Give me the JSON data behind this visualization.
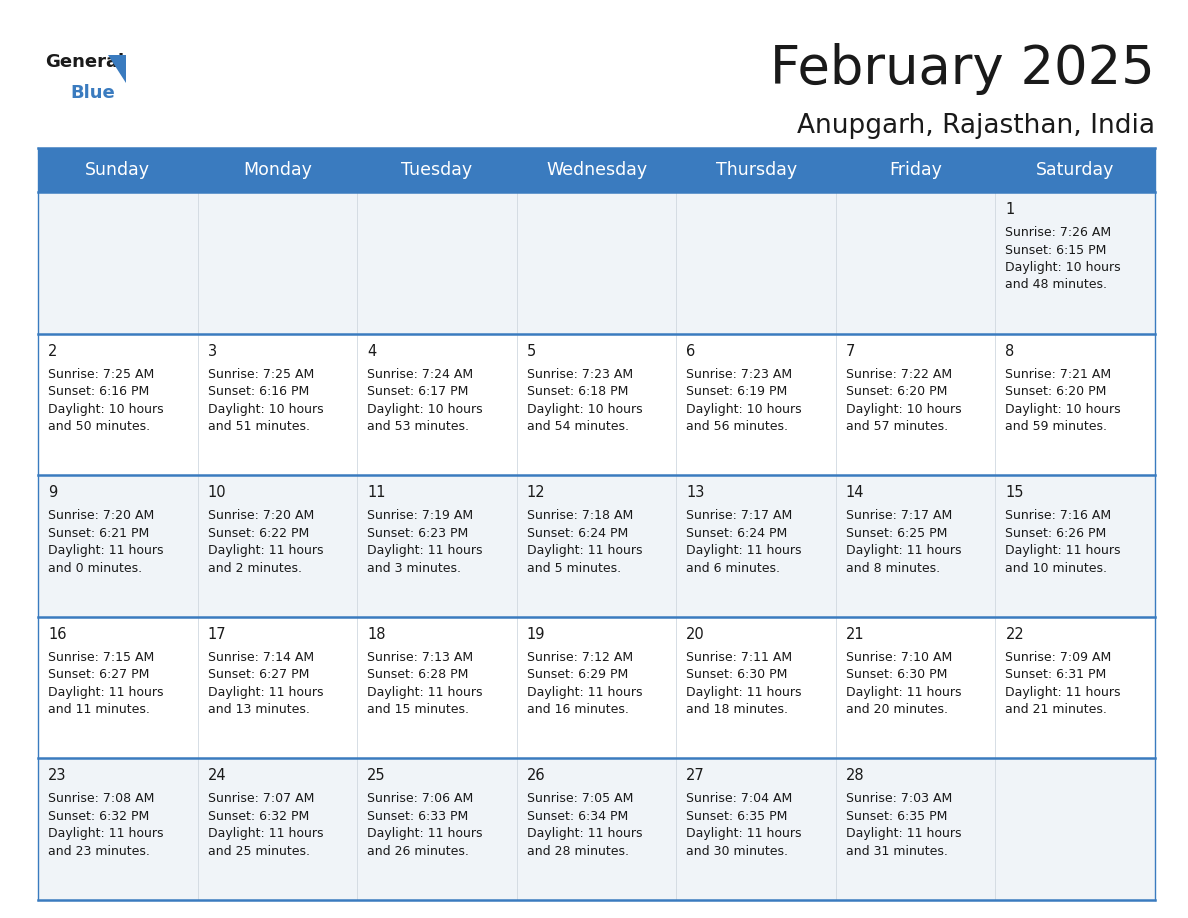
{
  "title": "February 2025",
  "subtitle": "Anupgarh, Rajasthan, India",
  "header_color": "#3a7bbf",
  "header_text_color": "#ffffff",
  "cell_bg": "#f0f4f8",
  "border_color": "#3a7bbf",
  "day_headers": [
    "Sunday",
    "Monday",
    "Tuesday",
    "Wednesday",
    "Thursday",
    "Friday",
    "Saturday"
  ],
  "title_fontsize": 38,
  "subtitle_fontsize": 19,
  "header_fontsize": 12.5,
  "day_num_fontsize": 10.5,
  "cell_text_fontsize": 9,
  "logo_general_fontsize": 13,
  "logo_blue_fontsize": 13,
  "days": [
    {
      "day": 1,
      "col": 6,
      "row": 0,
      "sunrise": "7:26 AM",
      "sunset": "6:15 PM",
      "daylight_h": "10 hours",
      "daylight_m": "48 minutes."
    },
    {
      "day": 2,
      "col": 0,
      "row": 1,
      "sunrise": "7:25 AM",
      "sunset": "6:16 PM",
      "daylight_h": "10 hours",
      "daylight_m": "50 minutes."
    },
    {
      "day": 3,
      "col": 1,
      "row": 1,
      "sunrise": "7:25 AM",
      "sunset": "6:16 PM",
      "daylight_h": "10 hours",
      "daylight_m": "51 minutes."
    },
    {
      "day": 4,
      "col": 2,
      "row": 1,
      "sunrise": "7:24 AM",
      "sunset": "6:17 PM",
      "daylight_h": "10 hours",
      "daylight_m": "53 minutes."
    },
    {
      "day": 5,
      "col": 3,
      "row": 1,
      "sunrise": "7:23 AM",
      "sunset": "6:18 PM",
      "daylight_h": "10 hours",
      "daylight_m": "54 minutes."
    },
    {
      "day": 6,
      "col": 4,
      "row": 1,
      "sunrise": "7:23 AM",
      "sunset": "6:19 PM",
      "daylight_h": "10 hours",
      "daylight_m": "56 minutes."
    },
    {
      "day": 7,
      "col": 5,
      "row": 1,
      "sunrise": "7:22 AM",
      "sunset": "6:20 PM",
      "daylight_h": "10 hours",
      "daylight_m": "57 minutes."
    },
    {
      "day": 8,
      "col": 6,
      "row": 1,
      "sunrise": "7:21 AM",
      "sunset": "6:20 PM",
      "daylight_h": "10 hours",
      "daylight_m": "59 minutes."
    },
    {
      "day": 9,
      "col": 0,
      "row": 2,
      "sunrise": "7:20 AM",
      "sunset": "6:21 PM",
      "daylight_h": "11 hours",
      "daylight_m": "0 minutes."
    },
    {
      "day": 10,
      "col": 1,
      "row": 2,
      "sunrise": "7:20 AM",
      "sunset": "6:22 PM",
      "daylight_h": "11 hours",
      "daylight_m": "2 minutes."
    },
    {
      "day": 11,
      "col": 2,
      "row": 2,
      "sunrise": "7:19 AM",
      "sunset": "6:23 PM",
      "daylight_h": "11 hours",
      "daylight_m": "3 minutes."
    },
    {
      "day": 12,
      "col": 3,
      "row": 2,
      "sunrise": "7:18 AM",
      "sunset": "6:24 PM",
      "daylight_h": "11 hours",
      "daylight_m": "5 minutes."
    },
    {
      "day": 13,
      "col": 4,
      "row": 2,
      "sunrise": "7:17 AM",
      "sunset": "6:24 PM",
      "daylight_h": "11 hours",
      "daylight_m": "6 minutes."
    },
    {
      "day": 14,
      "col": 5,
      "row": 2,
      "sunrise": "7:17 AM",
      "sunset": "6:25 PM",
      "daylight_h": "11 hours",
      "daylight_m": "8 minutes."
    },
    {
      "day": 15,
      "col": 6,
      "row": 2,
      "sunrise": "7:16 AM",
      "sunset": "6:26 PM",
      "daylight_h": "11 hours",
      "daylight_m": "10 minutes."
    },
    {
      "day": 16,
      "col": 0,
      "row": 3,
      "sunrise": "7:15 AM",
      "sunset": "6:27 PM",
      "daylight_h": "11 hours",
      "daylight_m": "11 minutes."
    },
    {
      "day": 17,
      "col": 1,
      "row": 3,
      "sunrise": "7:14 AM",
      "sunset": "6:27 PM",
      "daylight_h": "11 hours",
      "daylight_m": "13 minutes."
    },
    {
      "day": 18,
      "col": 2,
      "row": 3,
      "sunrise": "7:13 AM",
      "sunset": "6:28 PM",
      "daylight_h": "11 hours",
      "daylight_m": "15 minutes."
    },
    {
      "day": 19,
      "col": 3,
      "row": 3,
      "sunrise": "7:12 AM",
      "sunset": "6:29 PM",
      "daylight_h": "11 hours",
      "daylight_m": "16 minutes."
    },
    {
      "day": 20,
      "col": 4,
      "row": 3,
      "sunrise": "7:11 AM",
      "sunset": "6:30 PM",
      "daylight_h": "11 hours",
      "daylight_m": "18 minutes."
    },
    {
      "day": 21,
      "col": 5,
      "row": 3,
      "sunrise": "7:10 AM",
      "sunset": "6:30 PM",
      "daylight_h": "11 hours",
      "daylight_m": "20 minutes."
    },
    {
      "day": 22,
      "col": 6,
      "row": 3,
      "sunrise": "7:09 AM",
      "sunset": "6:31 PM",
      "daylight_h": "11 hours",
      "daylight_m": "21 minutes."
    },
    {
      "day": 23,
      "col": 0,
      "row": 4,
      "sunrise": "7:08 AM",
      "sunset": "6:32 PM",
      "daylight_h": "11 hours",
      "daylight_m": "23 minutes."
    },
    {
      "day": 24,
      "col": 1,
      "row": 4,
      "sunrise": "7:07 AM",
      "sunset": "6:32 PM",
      "daylight_h": "11 hours",
      "daylight_m": "25 minutes."
    },
    {
      "day": 25,
      "col": 2,
      "row": 4,
      "sunrise": "7:06 AM",
      "sunset": "6:33 PM",
      "daylight_h": "11 hours",
      "daylight_m": "26 minutes."
    },
    {
      "day": 26,
      "col": 3,
      "row": 4,
      "sunrise": "7:05 AM",
      "sunset": "6:34 PM",
      "daylight_h": "11 hours",
      "daylight_m": "28 minutes."
    },
    {
      "day": 27,
      "col": 4,
      "row": 4,
      "sunrise": "7:04 AM",
      "sunset": "6:35 PM",
      "daylight_h": "11 hours",
      "daylight_m": "30 minutes."
    },
    {
      "day": 28,
      "col": 5,
      "row": 4,
      "sunrise": "7:03 AM",
      "sunset": "6:35 PM",
      "daylight_h": "11 hours",
      "daylight_m": "31 minutes."
    }
  ]
}
